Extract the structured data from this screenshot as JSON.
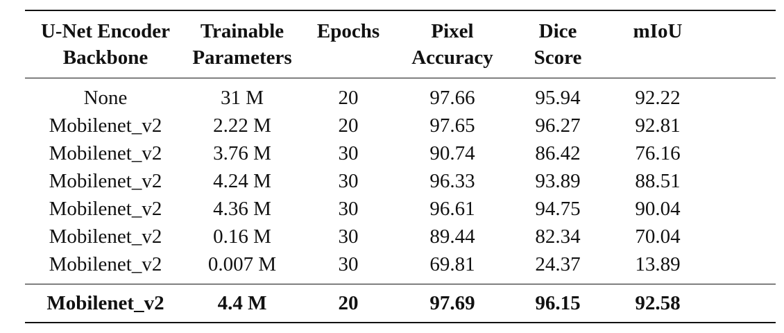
{
  "table": {
    "headers": [
      [
        "U-Net Encoder",
        "Backbone"
      ],
      [
        "Trainable",
        "Parameters"
      ],
      [
        "Epochs"
      ],
      [
        "Pixel",
        "Accuracy"
      ],
      [
        "Dice",
        "Score"
      ],
      [
        "mIoU"
      ]
    ],
    "rows": [
      [
        "None",
        "31 M",
        "20",
        "97.66",
        "95.94",
        "92.22"
      ],
      [
        "Mobilenet_v2",
        "2.22 M",
        "20",
        "97.65",
        "96.27",
        "92.81"
      ],
      [
        "Mobilenet_v2",
        "3.76 M",
        "30",
        "90.74",
        "86.42",
        "76.16"
      ],
      [
        "Mobilenet_v2",
        "4.24 M",
        "30",
        "96.33",
        "93.89",
        "88.51"
      ],
      [
        "Mobilenet_v2",
        "4.36 M",
        "30",
        "96.61",
        "94.75",
        "90.04"
      ],
      [
        "Mobilenet_v2",
        "0.16 M",
        "30",
        "89.44",
        "82.34",
        "70.04"
      ],
      [
        "Mobilenet_v2",
        "0.007 M",
        "30",
        "69.81",
        "24.37",
        "13.89"
      ]
    ],
    "final_row": [
      "Mobilenet_v2",
      "4.4 M",
      "20",
      "97.69",
      "96.15",
      "92.58"
    ]
  }
}
